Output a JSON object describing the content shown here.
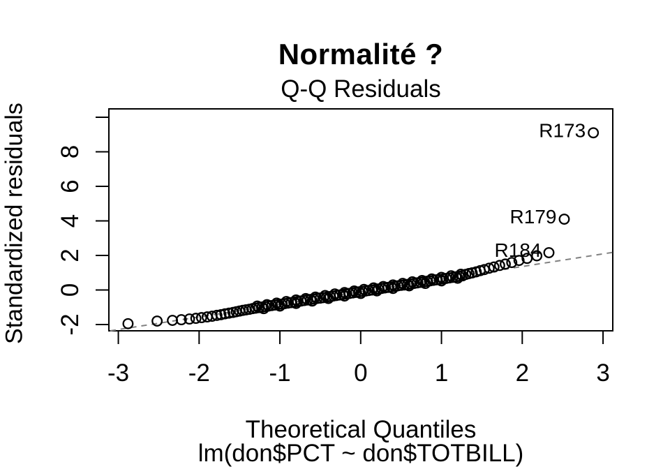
{
  "figure": {
    "title": "Normalité ?",
    "subtitle": "Q-Q Residuals",
    "x_axis_label": "Theoretical Quantiles",
    "y_axis_label": "Standardized residuals",
    "caption": "lm(don$PCT ~ don$TOTBILL)"
  },
  "chart_data": {
    "type": "scatter",
    "title": "Normalité ?",
    "subtitle": "Q-Q Residuals",
    "xlabel": "Theoretical Quantiles",
    "ylabel": "Standardized residuals",
    "caption": "lm(don$PCT ~ don$TOTBILL)",
    "xlim": [
      -3.1,
      3.12
    ],
    "ylim": [
      -2.4,
      10.5
    ],
    "x_ticks": [
      -3,
      -2,
      -1,
      0,
      1,
      2,
      3
    ],
    "y_ticks": [
      -2,
      0,
      2,
      4,
      6,
      8
    ],
    "y_ticks_unlabeled": [
      10
    ],
    "grid": false,
    "marker": {
      "shape": "open-circle",
      "color": "#000000"
    },
    "reference_line": {
      "style": "dashed",
      "color": "#808080",
      "slope": 0.73,
      "intercept": -0.1,
      "x_start": -3.1,
      "x_end": 3.12
    },
    "labeled_points": [
      {
        "label": "R173",
        "x": 2.88,
        "y": 9.1
      },
      {
        "label": "R179",
        "x": 2.52,
        "y": 4.1
      },
      {
        "label": "R184",
        "x": 2.33,
        "y": 2.16
      }
    ],
    "points": [
      [
        -2.88,
        -1.95
      ],
      [
        -2.52,
        -1.8
      ],
      [
        -2.33,
        -1.76
      ],
      [
        -2.22,
        -1.72
      ],
      [
        -2.12,
        -1.68
      ],
      [
        -2.04,
        -1.64
      ],
      [
        -1.97,
        -1.6
      ],
      [
        -1.9,
        -1.56
      ],
      [
        -1.84,
        -1.52
      ],
      [
        -1.78,
        -1.47
      ],
      [
        -1.73,
        -1.43
      ],
      [
        -1.68,
        -1.38
      ],
      [
        -1.63,
        -1.34
      ],
      [
        -1.58,
        -1.3
      ],
      [
        -1.54,
        -1.26
      ],
      [
        -1.5,
        -1.22
      ],
      [
        -1.46,
        -1.18
      ],
      [
        -1.42,
        -1.15
      ],
      [
        -1.38,
        -1.12
      ],
      [
        -1.34,
        -1.08
      ],
      [
        -1.3,
        -1.05
      ],
      [
        -1.26,
        -1.02
      ],
      [
        -1.22,
        -0.99
      ],
      [
        -1.18,
        -0.96
      ],
      [
        -1.14,
        -0.93
      ],
      [
        -1.1,
        -0.9
      ],
      [
        -1.06,
        -0.87
      ],
      [
        -1.02,
        -0.84
      ],
      [
        -0.98,
        -0.82
      ],
      [
        -0.94,
        -0.79
      ],
      [
        -0.9,
        -0.76
      ],
      [
        -0.86,
        -0.73
      ],
      [
        -0.82,
        -0.7
      ],
      [
        -0.78,
        -0.67
      ],
      [
        -0.74,
        -0.64
      ],
      [
        -0.7,
        -0.61
      ],
      [
        -0.66,
        -0.58
      ],
      [
        -0.62,
        -0.55
      ],
      [
        -0.58,
        -0.52
      ],
      [
        -0.54,
        -0.49
      ],
      [
        -0.5,
        -0.47
      ],
      [
        -0.46,
        -0.44
      ],
      [
        -0.42,
        -0.41
      ],
      [
        -0.38,
        -0.38
      ],
      [
        -0.34,
        -0.35
      ],
      [
        -0.3,
        -0.32
      ],
      [
        -0.26,
        -0.29
      ],
      [
        -0.22,
        -0.26
      ],
      [
        -0.18,
        -0.23
      ],
      [
        -0.14,
        -0.2
      ],
      [
        -0.1,
        -0.17
      ],
      [
        -0.06,
        -0.14
      ],
      [
        -0.02,
        -0.11
      ],
      [
        0.02,
        -0.09
      ],
      [
        0.06,
        -0.06
      ],
      [
        0.1,
        -0.03
      ],
      [
        0.14,
        0
      ],
      [
        0.18,
        0.03
      ],
      [
        0.22,
        0.06
      ],
      [
        0.26,
        0.09
      ],
      [
        0.3,
        0.12
      ],
      [
        0.34,
        0.15
      ],
      [
        0.38,
        0.18
      ],
      [
        0.42,
        0.21
      ],
      [
        0.46,
        0.24
      ],
      [
        0.5,
        0.27
      ],
      [
        0.54,
        0.29
      ],
      [
        0.58,
        0.32
      ],
      [
        0.62,
        0.35
      ],
      [
        0.66,
        0.38
      ],
      [
        0.7,
        0.41
      ],
      [
        0.74,
        0.44
      ],
      [
        0.78,
        0.47
      ],
      [
        0.82,
        0.5
      ],
      [
        0.86,
        0.53
      ],
      [
        0.9,
        0.56
      ],
      [
        0.94,
        0.59
      ],
      [
        0.98,
        0.62
      ],
      [
        1.02,
        0.64
      ],
      [
        1.06,
        0.67
      ],
      [
        1.1,
        0.7
      ],
      [
        1.14,
        0.73
      ],
      [
        1.18,
        0.76
      ],
      [
        1.22,
        0.79
      ],
      [
        1.26,
        0.82
      ],
      [
        1.3,
        0.9
      ],
      [
        1.34,
        0.95
      ],
      [
        1.38,
        0.99
      ],
      [
        1.43,
        1.05
      ],
      [
        1.48,
        1.12
      ],
      [
        1.53,
        1.18
      ],
      [
        1.59,
        1.26
      ],
      [
        1.65,
        1.33
      ],
      [
        1.72,
        1.42
      ],
      [
        1.79,
        1.5
      ],
      [
        1.87,
        1.59
      ],
      [
        1.96,
        1.71
      ],
      [
        2.06,
        1.83
      ],
      [
        2.18,
        1.98
      ],
      [
        -1.28,
        -0.93
      ],
      [
        -1.16,
        -0.85
      ],
      [
        -1.04,
        -0.76
      ],
      [
        -0.92,
        -0.67
      ],
      [
        -0.8,
        -0.58
      ],
      [
        -0.68,
        -0.5
      ],
      [
        -0.56,
        -0.41
      ],
      [
        -0.44,
        -0.32
      ],
      [
        -0.32,
        -0.23
      ],
      [
        -0.2,
        -0.15
      ],
      [
        -0.08,
        -0.06
      ],
      [
        0.04,
        0.03
      ],
      [
        0.16,
        0.12
      ],
      [
        0.28,
        0.2
      ],
      [
        0.4,
        0.29
      ],
      [
        0.52,
        0.38
      ],
      [
        0.64,
        0.47
      ],
      [
        0.76,
        0.55
      ],
      [
        0.88,
        0.64
      ],
      [
        1,
        0.73
      ],
      [
        1.12,
        0.82
      ],
      [
        1.24,
        0.91
      ],
      [
        -1.2,
        -1.08
      ],
      [
        -1,
        -0.93
      ],
      [
        -0.8,
        -0.78
      ],
      [
        -0.6,
        -0.64
      ],
      [
        -0.4,
        -0.49
      ],
      [
        -0.2,
        -0.35
      ],
      [
        0,
        -0.2
      ],
      [
        0.2,
        -0.05
      ],
      [
        0.4,
        0.09
      ],
      [
        0.6,
        0.24
      ],
      [
        0.8,
        0.38
      ],
      [
        1,
        0.53
      ],
      [
        1.2,
        0.68
      ]
    ]
  }
}
